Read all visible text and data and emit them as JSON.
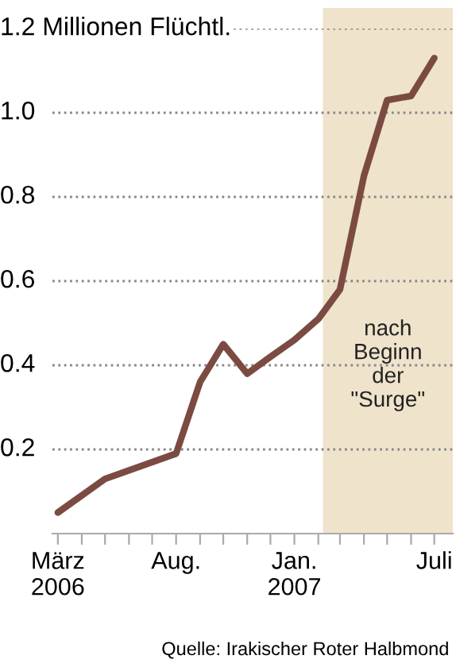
{
  "chart_data": {
    "type": "line",
    "x": [
      "2006-03",
      "2006-05",
      "2006-08",
      "2006-09",
      "2006-10",
      "2006-11",
      "2006-12",
      "2007-01",
      "2007-02",
      "2007-03",
      "2007-04",
      "2007-05",
      "2007-06",
      "2007-07"
    ],
    "series": [
      {
        "color": "#7b4b42",
        "values": [
          0.05,
          0.13,
          0.19,
          0.36,
          0.45,
          0.38,
          0.42,
          0.46,
          0.51,
          0.58,
          0.85,
          1.03,
          1.04,
          1.13
        ]
      }
    ],
    "xlim": [
      "2006-02-22",
      "2007-07-25"
    ],
    "xticks": [
      {
        "value": "2006-03",
        "label": "März\n2006"
      },
      {
        "value": "2006-04",
        "label": null
      },
      {
        "value": "2006-05",
        "label": null
      },
      {
        "value": "2006-06",
        "label": null
      },
      {
        "value": "2006-07",
        "label": null
      },
      {
        "value": "2006-08",
        "label": "Aug."
      },
      {
        "value": "2006-09",
        "label": null
      },
      {
        "value": "2006-10",
        "label": null
      },
      {
        "value": "2006-11",
        "label": null
      },
      {
        "value": "2006-12",
        "label": null
      },
      {
        "value": "2007-01",
        "label": "Jan.\n2007"
      },
      {
        "value": "2007-02",
        "label": null
      },
      {
        "value": "2007-03",
        "label": null
      },
      {
        "value": "2007-04",
        "label": null
      },
      {
        "value": "2007-05",
        "label": null
      },
      {
        "value": "2007-06",
        "label": null
      },
      {
        "value": "2007-07",
        "label": "Juli"
      }
    ],
    "ylim": [
      0,
      1.2
    ],
    "yticks": [
      0.2,
      0.4,
      0.6,
      0.8,
      {
        "value": 1.0,
        "label": "1.0"
      },
      {
        "value": 1.2,
        "label": "1.2 Millionen Flüchtl."
      }
    ],
    "grid": "y",
    "line_style": "solid",
    "marker": "none",
    "bands": [
      {
        "axis": "x",
        "from": "2007-02-07",
        "to": "2007-07-25",
        "label": "nach\nBeginn\nder\n\"Surge\"",
        "color": "#efe3cc"
      }
    ],
    "annotations": [
      "Quelle: Irakischer Roter Halbmond"
    ]
  }
}
